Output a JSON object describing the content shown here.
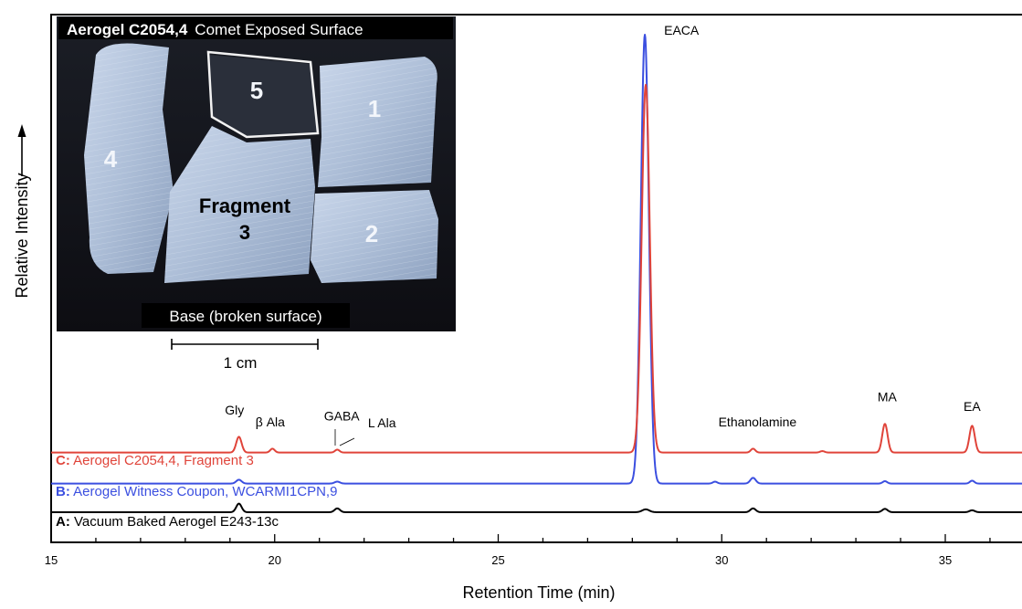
{
  "chart_data": {
    "type": "line",
    "xlabel": "Retention Time (min)",
    "ylabel": "Relative Intensity",
    "xlim": [
      15,
      36.8
    ],
    "xticks": [
      15,
      20,
      25,
      30,
      35
    ],
    "xtick_labels": [
      "15",
      "20",
      "25",
      "30",
      "35"
    ],
    "minor_tick_step": 1,
    "grid": false,
    "legend": "none",
    "series": [
      {
        "key": "A",
        "label_key": "A:",
        "label_text": " Vacuum Baked Aerogel E243-13c",
        "color": "#000000",
        "baseline": 0.0,
        "peaks": [
          {
            "x": 19.2,
            "h": 0.018,
            "w": 0.06
          },
          {
            "x": 21.4,
            "h": 0.008,
            "w": 0.06
          },
          {
            "x": 28.3,
            "h": 0.006,
            "w": 0.08
          },
          {
            "x": 30.7,
            "h": 0.008,
            "w": 0.06
          },
          {
            "x": 33.65,
            "h": 0.007,
            "w": 0.06
          },
          {
            "x": 35.6,
            "h": 0.004,
            "w": 0.06
          }
        ]
      },
      {
        "key": "B",
        "label_key": "B:",
        "label_text": " Aerogel Witness Coupon, WCARMI1CPN,9",
        "color": "#3b4fe0",
        "baseline": 0.06,
        "peaks": [
          {
            "x": 19.2,
            "h": 0.008,
            "w": 0.06
          },
          {
            "x": 21.4,
            "h": 0.004,
            "w": 0.06
          },
          {
            "x": 28.28,
            "h": 0.94,
            "w": 0.09
          },
          {
            "x": 29.85,
            "h": 0.004,
            "w": 0.05
          },
          {
            "x": 30.7,
            "h": 0.012,
            "w": 0.06
          },
          {
            "x": 33.65,
            "h": 0.005,
            "w": 0.05
          },
          {
            "x": 35.6,
            "h": 0.006,
            "w": 0.05
          }
        ]
      },
      {
        "key": "C",
        "label_key": "C:",
        "label_text": " Aerogel C2054,4, Fragment 3",
        "color": "#e0443a",
        "baseline": 0.125,
        "peaks": [
          {
            "x": 19.2,
            "h": 0.033,
            "w": 0.06
          },
          {
            "x": 19.95,
            "h": 0.008,
            "w": 0.05
          },
          {
            "x": 21.4,
            "h": 0.006,
            "w": 0.05
          },
          {
            "x": 28.3,
            "h": 0.77,
            "w": 0.09
          },
          {
            "x": 30.7,
            "h": 0.008,
            "w": 0.05
          },
          {
            "x": 32.25,
            "h": 0.003,
            "w": 0.05
          },
          {
            "x": 33.65,
            "h": 0.06,
            "w": 0.06
          },
          {
            "x": 35.6,
            "h": 0.056,
            "w": 0.06
          }
        ]
      }
    ],
    "annotations": [
      {
        "text": "Gly",
        "x": 19.1,
        "y": 0.205
      },
      {
        "text": "β Ala",
        "x": 19.9,
        "y": 0.18
      },
      {
        "text": "GABA",
        "x": 21.5,
        "y": 0.192
      },
      {
        "text": "L Ala",
        "x": 22.4,
        "y": 0.178
      },
      {
        "text": "EACA",
        "x": 29.1,
        "y": 1.0
      },
      {
        "text": "Ethanolamine",
        "x": 30.8,
        "y": 0.18
      },
      {
        "text": "MA",
        "x": 33.7,
        "y": 0.232
      },
      {
        "text": "EA",
        "x": 35.6,
        "y": 0.212
      }
    ]
  },
  "inset": {
    "title_bold": "Aerogel C2054,4",
    "title_rest": "Comet Exposed Surface",
    "fragment_label_1": "Fragment",
    "fragment_label_2": "3",
    "fragment_numbers": [
      "1",
      "2",
      "4",
      "5"
    ],
    "base_label": "Base (broken surface)",
    "scale_label": "1 cm"
  }
}
